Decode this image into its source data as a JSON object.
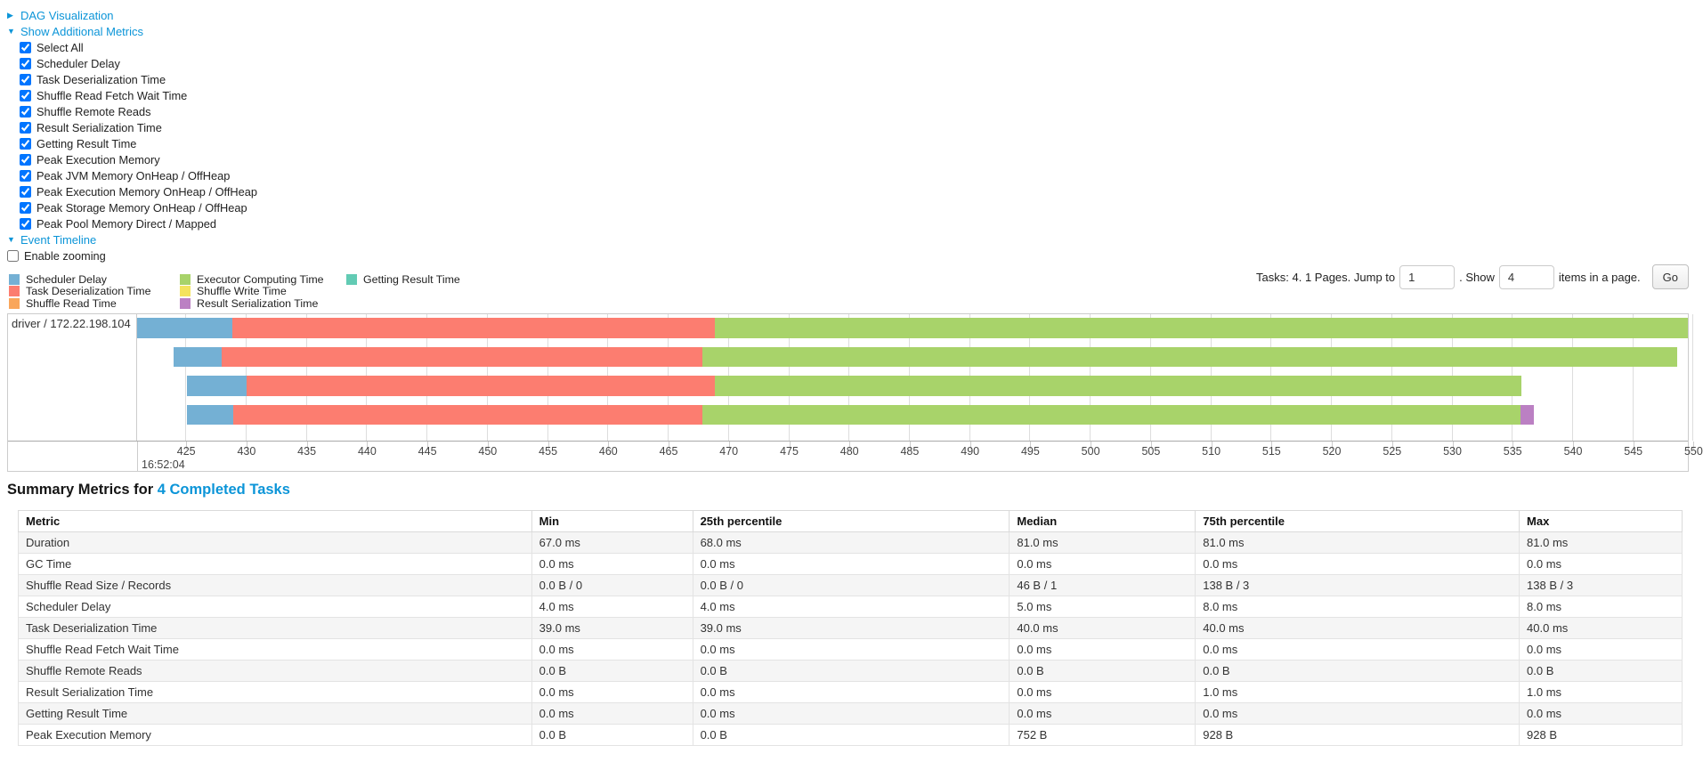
{
  "colors": {
    "scheduler": "#74b0d4",
    "deser": "#fc7d70",
    "shuffle_read": "#f9a65b",
    "compute": "#a8d36a",
    "shuffle_write": "#f4e35e",
    "result_ser": "#bb80c3",
    "getting_result": "#62cbb4",
    "link": "#0c95d8"
  },
  "panels": {
    "dag": {
      "arrow": "▶",
      "label": "DAG Visualization"
    },
    "metrics": {
      "arrow": "▼",
      "label": "Show Additional Metrics"
    },
    "timeline": {
      "arrow": "▼",
      "label": "Event Timeline"
    }
  },
  "metric_checkboxes": [
    {
      "label": "Select All",
      "checked": true
    },
    {
      "label": "Scheduler Delay",
      "checked": true
    },
    {
      "label": "Task Deserialization Time",
      "checked": true
    },
    {
      "label": "Shuffle Read Fetch Wait Time",
      "checked": true
    },
    {
      "label": "Shuffle Remote Reads",
      "checked": true
    },
    {
      "label": "Result Serialization Time",
      "checked": true
    },
    {
      "label": "Getting Result Time",
      "checked": true
    },
    {
      "label": "Peak Execution Memory",
      "checked": true
    },
    {
      "label": "Peak JVM Memory OnHeap / OffHeap",
      "checked": true
    },
    {
      "label": "Peak Execution Memory OnHeap / OffHeap",
      "checked": true
    },
    {
      "label": "Peak Storage Memory OnHeap / OffHeap",
      "checked": true
    },
    {
      "label": "Peak Pool Memory Direct / Mapped",
      "checked": true
    }
  ],
  "enable_zooming": {
    "label": "Enable zooming",
    "checked": false
  },
  "legend": {
    "columns": [
      [
        {
          "key": "scheduler",
          "label": "Scheduler Delay"
        },
        {
          "key": "deser",
          "label": "Task Deserialization Time"
        },
        {
          "key": "shuffle_read",
          "label": "Shuffle Read Time"
        }
      ],
      [
        {
          "key": "compute",
          "label": "Executor Computing Time"
        },
        {
          "key": "shuffle_write",
          "label": "Shuffle Write Time"
        },
        {
          "key": "result_ser",
          "label": "Result Serialization Time"
        }
      ],
      [
        {
          "key": "getting_result",
          "label": "Getting Result Time"
        }
      ]
    ]
  },
  "pagination": {
    "text_before_jump": "Tasks: 4. 1 Pages. Jump to",
    "jump_value": "1",
    "text_between": ". Show",
    "show_value": "4",
    "text_after": "items in a page.",
    "go_label": "Go"
  },
  "chart_data": {
    "type": "timeline-bars",
    "title": "Event Timeline",
    "row_label": "driver / 172.22.198.104",
    "x_axis": {
      "min": 421.0,
      "max": 549.6,
      "tick_start": 425,
      "tick_step": 5,
      "tick_end": 550,
      "date_label": "16:52:04"
    },
    "layout": {
      "row_tops": [
        4,
        36.5,
        69,
        101.5
      ],
      "bar_height": 22.5
    },
    "tasks": [
      {
        "segments": [
          {
            "key": "scheduler",
            "start": 421.0,
            "end": 428.9
          },
          {
            "key": "deser",
            "start": 428.9,
            "end": 468.9
          },
          {
            "key": "compute",
            "start": 468.9,
            "end": 549.6
          }
        ]
      },
      {
        "segments": [
          {
            "key": "scheduler",
            "start": 424.0,
            "end": 428.0
          },
          {
            "key": "deser",
            "start": 428.0,
            "end": 467.9
          },
          {
            "key": "compute",
            "start": 467.9,
            "end": 548.7
          }
        ]
      },
      {
        "segments": [
          {
            "key": "scheduler",
            "start": 425.1,
            "end": 430.1
          },
          {
            "key": "deser",
            "start": 430.1,
            "end": 468.9
          },
          {
            "key": "compute",
            "start": 468.9,
            "end": 535.8
          }
        ]
      },
      {
        "segments": [
          {
            "key": "scheduler",
            "start": 425.1,
            "end": 429.0
          },
          {
            "key": "deser",
            "start": 429.0,
            "end": 467.9
          },
          {
            "key": "compute",
            "start": 467.9,
            "end": 535.7
          },
          {
            "key": "result_ser",
            "start": 535.7,
            "end": 536.8
          }
        ]
      }
    ]
  },
  "summary": {
    "title_prefix": "Summary Metrics for",
    "title_link": "4 Completed Tasks",
    "table": {
      "headers": [
        "Metric",
        "Min",
        "25th percentile",
        "Median",
        "75th percentile",
        "Max"
      ],
      "rows": [
        [
          "Duration",
          "67.0 ms",
          "68.0 ms",
          "81.0 ms",
          "81.0 ms",
          "81.0 ms"
        ],
        [
          "GC Time",
          "0.0 ms",
          "0.0 ms",
          "0.0 ms",
          "0.0 ms",
          "0.0 ms"
        ],
        [
          "Shuffle Read Size / Records",
          "0.0 B / 0",
          "0.0 B / 0",
          "46 B / 1",
          "138 B / 3",
          "138 B / 3"
        ],
        [
          "Scheduler Delay",
          "4.0 ms",
          "4.0 ms",
          "5.0 ms",
          "8.0 ms",
          "8.0 ms"
        ],
        [
          "Task Deserialization Time",
          "39.0 ms",
          "39.0 ms",
          "40.0 ms",
          "40.0 ms",
          "40.0 ms"
        ],
        [
          "Shuffle Read Fetch Wait Time",
          "0.0 ms",
          "0.0 ms",
          "0.0 ms",
          "0.0 ms",
          "0.0 ms"
        ],
        [
          "Shuffle Remote Reads",
          "0.0 B",
          "0.0 B",
          "0.0 B",
          "0.0 B",
          "0.0 B"
        ],
        [
          "Result Serialization Time",
          "0.0 ms",
          "0.0 ms",
          "0.0 ms",
          "1.0 ms",
          "1.0 ms"
        ],
        [
          "Getting Result Time",
          "0.0 ms",
          "0.0 ms",
          "0.0 ms",
          "0.0 ms",
          "0.0 ms"
        ],
        [
          "Peak Execution Memory",
          "0.0 B",
          "0.0 B",
          "752 B",
          "928 B",
          "928 B"
        ]
      ]
    }
  }
}
